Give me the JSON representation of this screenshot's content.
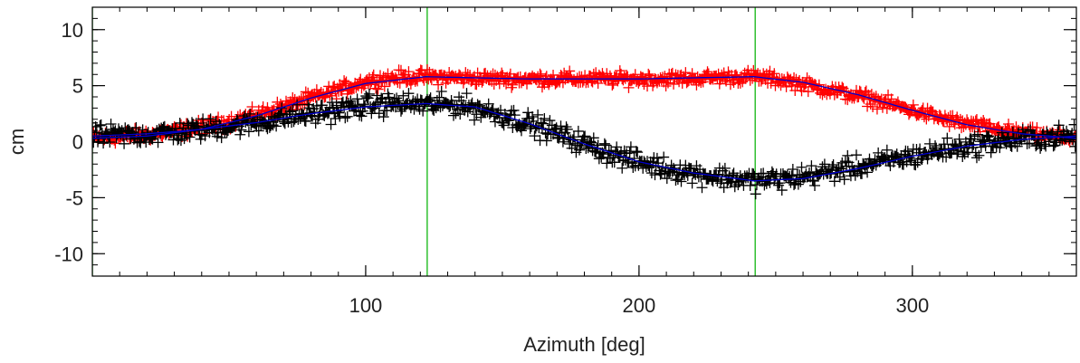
{
  "chart_data": {
    "type": "scatter",
    "title": "",
    "xlabel": "Azimuth [deg]",
    "ylabel": "cm",
    "xlim": [
      0,
      360
    ],
    "ylim": [
      -12,
      12
    ],
    "x_ticks": [
      {
        "value": 100,
        "label": "100"
      },
      {
        "value": 200,
        "label": "200"
      },
      {
        "value": 300,
        "label": "300"
      }
    ],
    "y_ticks": [
      {
        "value": 10,
        "label": "10"
      },
      {
        "value": 5,
        "label": "5"
      },
      {
        "value": 0,
        "label": "0"
      },
      {
        "value": -5,
        "label": "-5"
      },
      {
        "value": -10,
        "label": "-10"
      }
    ],
    "x_minor_step": 10,
    "y_minor_step": 1,
    "grid": false,
    "legend": "none",
    "vertical_lines": [
      {
        "x": 0,
        "color": "#22bb22"
      },
      {
        "x": 122.5,
        "color": "#22bb22"
      },
      {
        "x": 242.5,
        "color": "#22bb22"
      }
    ],
    "series": [
      {
        "color": "#ff0000",
        "marker": "plus",
        "x": [
          0,
          15,
          30,
          45,
          60,
          75,
          90,
          100,
          110,
          122,
          135,
          150,
          165,
          180,
          195,
          210,
          225,
          242,
          255,
          270,
          285,
          300,
          315,
          330,
          345,
          360
        ],
        "y": [
          0.3,
          0.5,
          0.9,
          1.5,
          2.4,
          3.5,
          4.6,
          5.4,
          5.7,
          5.8,
          5.7,
          5.6,
          5.6,
          5.6,
          5.6,
          5.6,
          5.7,
          5.8,
          5.4,
          4.6,
          3.8,
          2.8,
          1.8,
          1.1,
          0.6,
          0.3
        ],
        "jitter": 0.45
      },
      {
        "color": "#000000",
        "marker": "plus",
        "x": [
          0,
          15,
          30,
          45,
          60,
          75,
          90,
          100,
          110,
          122,
          135,
          150,
          165,
          180,
          195,
          210,
          225,
          242,
          255,
          270,
          285,
          300,
          315,
          330,
          345,
          360
        ],
        "y": [
          0.5,
          0.6,
          0.8,
          1.2,
          1.7,
          2.3,
          2.8,
          3.2,
          3.4,
          3.3,
          3.3,
          2.4,
          1.2,
          -0.2,
          -1.5,
          -2.4,
          -3.0,
          -3.5,
          -3.3,
          -2.7,
          -2.0,
          -1.3,
          -0.6,
          0.0,
          0.3,
          0.5
        ],
        "jitter": 0.7
      }
    ],
    "fit_lines": [
      {
        "color": "#0000cc",
        "x": [
          0,
          20,
          40,
          60,
          80,
          100,
          122,
          140,
          160,
          180,
          200,
          220,
          242,
          260,
          280,
          300,
          320,
          340,
          360
        ],
        "y": [
          0.3,
          0.5,
          1.1,
          2.3,
          3.9,
          5.2,
          5.8,
          5.7,
          5.6,
          5.6,
          5.6,
          5.7,
          5.8,
          5.3,
          4.2,
          2.8,
          1.5,
          0.7,
          0.3
        ]
      },
      {
        "color": "#0000cc",
        "x": [
          0,
          20,
          40,
          60,
          80,
          100,
          122,
          140,
          160,
          180,
          200,
          220,
          242,
          260,
          280,
          300,
          320,
          340,
          360
        ],
        "y": [
          0.5,
          0.7,
          1.1,
          1.7,
          2.5,
          3.1,
          3.4,
          3.1,
          1.6,
          -0.2,
          -1.8,
          -2.8,
          -3.5,
          -3.3,
          -2.4,
          -1.3,
          -0.4,
          0.2,
          0.5
        ]
      }
    ]
  }
}
